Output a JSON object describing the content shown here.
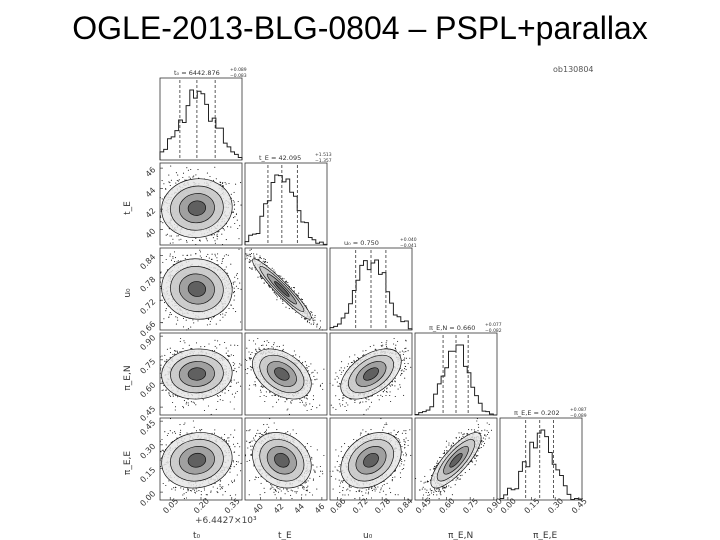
{
  "title": "OGLE-2013-BLG-0804 – PSPL+parallax",
  "plot_label": "ob130804",
  "offset_label": "+6.4427×10³",
  "chart_data": {
    "type": "scatter",
    "subtype": "corner-plot",
    "parameters": [
      {
        "id": "t0",
        "axis_label": "t₀",
        "histogram_title": "t₀ = 6442.876",
        "median": 0.18,
        "err_plus": 0.089,
        "err_minus": 0.083,
        "range": [
          0.0,
          0.4
        ],
        "ticks": [
          "0.05",
          "0.20",
          "0.35"
        ],
        "tick_values": [
          0.05,
          0.2,
          0.35
        ]
      },
      {
        "id": "tE",
        "axis_label": "t_E",
        "histogram_title": "t_E = 42.095",
        "median": 42.095,
        "err_plus": 1.513,
        "err_minus": 1.357,
        "range": [
          38.5,
          46.5
        ],
        "ticks": [
          "40",
          "42",
          "44",
          "46"
        ],
        "tick_values": [
          40,
          42,
          44,
          46
        ]
      },
      {
        "id": "u0",
        "axis_label": "u₀",
        "histogram_title": "u₀ = 0.750",
        "median": 0.75,
        "err_plus": 0.04,
        "err_minus": 0.041,
        "range": [
          0.64,
          0.86
        ],
        "ticks": [
          "0.66",
          "0.72",
          "0.78",
          "0.84"
        ],
        "tick_values": [
          0.66,
          0.72,
          0.78,
          0.84
        ]
      },
      {
        "id": "piEN",
        "axis_label": "π_E,N",
        "histogram_title": "π_E,N = 0.660",
        "median": 0.66,
        "err_plus": 0.077,
        "err_minus": 0.082,
        "range": [
          0.4,
          0.92
        ],
        "ticks": [
          "0.45",
          "0.60",
          "0.75",
          "0.90"
        ],
        "tick_values": [
          0.45,
          0.6,
          0.75,
          0.9
        ]
      },
      {
        "id": "piEE",
        "axis_label": "π_E,E",
        "histogram_title": "π_E,E = 0.202",
        "median": 0.202,
        "err_plus": 0.087,
        "err_minus": 0.089,
        "range": [
          -0.05,
          0.47
        ],
        "ticks": [
          "0.00",
          "0.15",
          "0.30",
          "0.45"
        ],
        "tick_values": [
          0.0,
          0.15,
          0.3,
          0.45
        ]
      }
    ],
    "correlations": [
      [
        1.0,
        0.05,
        -0.05,
        0.05,
        0.1
      ],
      [
        0.05,
        1.0,
        -0.95,
        -0.4,
        -0.2
      ],
      [
        -0.05,
        -0.95,
        1.0,
        0.5,
        0.3
      ],
      [
        0.05,
        -0.4,
        0.5,
        1.0,
        0.8
      ],
      [
        0.1,
        -0.2,
        0.3,
        0.8,
        1.0
      ]
    ],
    "grid": false
  }
}
